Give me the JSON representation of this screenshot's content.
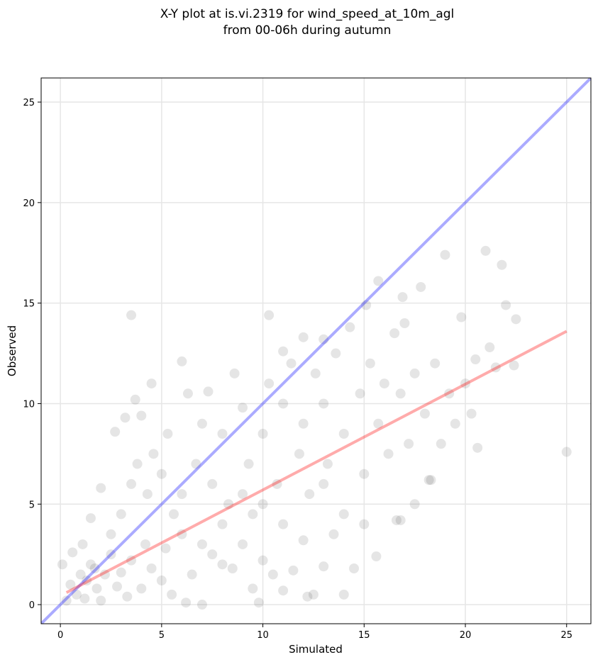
{
  "chart_data": {
    "type": "scatter",
    "title": "X-Y plot at is.vi.2319 for wind_speed_at_10m_agl",
    "subtitle": "from 00-06h during autumn",
    "xlabel": "Simulated",
    "ylabel": "Observed",
    "xlim": [
      -0.95,
      26.2
    ],
    "ylim": [
      -0.95,
      26.2
    ],
    "xticks": [
      0,
      5,
      10,
      15,
      20,
      25
    ],
    "yticks": [
      0,
      5,
      10,
      15,
      20,
      25
    ],
    "grid": true,
    "series": [
      {
        "type": "scatter",
        "color": "#000000",
        "x": [
          0.5,
          0.8,
          1,
          1.2,
          1.5,
          1.3,
          1.8,
          2,
          2.2,
          2.5,
          0.6,
          0.3,
          1.1,
          1.7,
          2.8,
          3,
          3.3,
          3.5,
          4,
          4.2,
          4.5,
          5,
          5.2,
          5.5,
          6,
          6.5,
          7,
          6.2,
          7.5,
          8,
          8.5,
          9,
          9.5,
          10,
          10.5,
          11,
          11.5,
          12,
          12.5,
          13,
          14,
          14.5,
          13.5,
          2,
          2.7,
          3,
          3.2,
          3.5,
          3.8,
          4,
          4.3,
          4.6,
          5,
          5.3,
          5.6,
          6,
          6.3,
          6.7,
          7,
          7.3,
          7.5,
          8,
          8.3,
          8.6,
          9,
          9.3,
          9.5,
          10,
          10.3,
          10.7,
          11,
          11.4,
          11.8,
          12,
          12.3,
          12.6,
          13,
          13.2,
          13.6,
          14,
          14.3,
          14.8,
          15,
          15.3,
          15.7,
          16,
          16.2,
          16.5,
          16.8,
          17,
          17.2,
          17.5,
          17.8,
          18,
          18.2,
          18.5,
          18.8,
          19,
          19.2,
          19.5,
          19.8,
          20,
          20.3,
          20.5,
          21,
          21.2,
          21.5,
          21.8,
          22,
          22.4,
          22.5,
          25,
          15.6,
          16.8,
          15,
          14,
          17.5,
          6,
          4.5,
          3.7,
          3.5,
          10.3,
          0.1,
          12.2,
          9.8,
          15.7,
          15.1,
          16.9,
          20.6,
          18.3,
          16.6,
          11,
          12,
          13,
          8,
          9,
          7,
          11,
          10,
          13,
          2.5,
          1.5
        ],
        "y": [
          1,
          0.5,
          1.5,
          0.3,
          2,
          1.2,
          0.8,
          0.2,
          1.5,
          2.5,
          2.6,
          0.2,
          3,
          1.8,
          0.9,
          1.6,
          0.4,
          2.2,
          0.8,
          3,
          1.8,
          1.2,
          2.8,
          0.5,
          3.5,
          1.5,
          0,
          0.1,
          2.5,
          4,
          1.8,
          3,
          0.8,
          2.2,
          1.5,
          0.7,
          1.7,
          3.2,
          0.5,
          1.9,
          0.5,
          1.8,
          3.5,
          5.8,
          8.6,
          4.5,
          9.3,
          6,
          7,
          9.4,
          5.5,
          7.5,
          6.5,
          8.5,
          4.5,
          5.5,
          10.5,
          7,
          9,
          10.6,
          6,
          8.5,
          5,
          11.5,
          9.8,
          7,
          4.5,
          8.5,
          11,
          6,
          10,
          12,
          7.5,
          9,
          5.5,
          11.5,
          10,
          7,
          12.5,
          8.5,
          13.8,
          10.5,
          6.5,
          12,
          9,
          11,
          7.5,
          13.5,
          10.5,
          14,
          8,
          11.5,
          15.8,
          9.5,
          6.2,
          12,
          8,
          17.4,
          10.5,
          9,
          14.3,
          11,
          9.5,
          12.2,
          17.6,
          12.8,
          11.8,
          16.9,
          14.9,
          11.9,
          14.2,
          7.6,
          2.4,
          4.2,
          4,
          4.5,
          5,
          12.1,
          11,
          10.2,
          14.4,
          14.4,
          2,
          0.4,
          0.1,
          16.1,
          14.9,
          15.3,
          7.8,
          6.2,
          4.2,
          12.6,
          13.3,
          13.2,
          2,
          5.5,
          3,
          4,
          5,
          6,
          3.5,
          4.3
        ]
      },
      {
        "type": "line",
        "color": "#0000ff",
        "x": [
          -0.95,
          26.2
        ],
        "y": [
          -0.95,
          26.2
        ]
      },
      {
        "type": "line",
        "color": "#ff0000",
        "x": [
          0.3,
          25
        ],
        "y": [
          0.6,
          13.6
        ]
      }
    ]
  }
}
